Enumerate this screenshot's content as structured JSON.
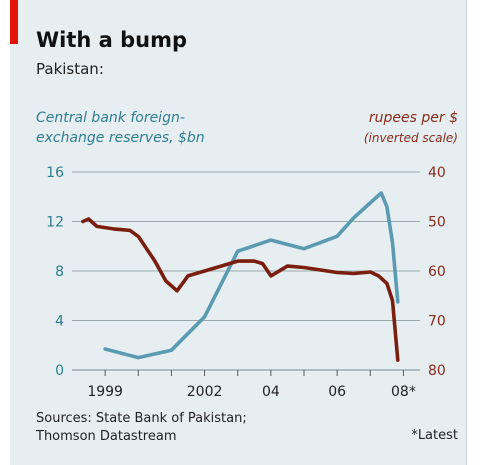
{
  "title": "With a bump",
  "subtitle": "Pakistan:",
  "left_axis_label": "Central bank foreign-exchange reserves, $bn",
  "left_axis_label_lines": [
    "Central bank foreign-",
    "exchange reserves, $bn"
  ],
  "right_axis_label": "rupees per $",
  "right_axis_sublabel": "(inverted scale)",
  "source_lines": [
    "Sources: State Bank of Pakistan;",
    "Thomson Datastream"
  ],
  "footnote": "*Latest",
  "colors": {
    "reserves": "#5a9bb2",
    "rupees": "#7a1f0f",
    "grid": "#9aa8ae",
    "accent": "#e3120b"
  },
  "chart_data": {
    "type": "line",
    "x_ticks": [
      "1999",
      "2002",
      "04",
      "06",
      "08*"
    ],
    "left_axis": {
      "ticks": [
        0,
        4,
        8,
        12,
        16
      ],
      "ylim": [
        0,
        16
      ],
      "unit": "$bn"
    },
    "right_axis": {
      "ticks": [
        40,
        50,
        60,
        70,
        80
      ],
      "ylim": [
        80,
        40
      ],
      "inverted": true,
      "unit": "rupees per $"
    },
    "grid": "horizontal",
    "series": [
      {
        "axis": "left",
        "x": [
          1999.0,
          2000.0,
          2001.0,
          2002.0,
          2003.0,
          2004.0,
          2005.0,
          2006.0,
          2006.5,
          2007.0,
          2007.33,
          2007.5,
          2007.67,
          2007.83
        ],
        "values": [
          1.7,
          1.0,
          1.6,
          4.3,
          9.6,
          10.5,
          9.8,
          10.8,
          12.3,
          13.5,
          14.3,
          13.2,
          10.3,
          5.5
        ]
      },
      {
        "axis": "right",
        "x": [
          1998.33,
          1998.5,
          1998.75,
          1999.25,
          1999.75,
          2000.0,
          2000.5,
          2000.83,
          2001.17,
          2001.5,
          2002.0,
          2002.5,
          2003.0,
          2003.5,
          2003.75,
          2004.0,
          2004.5,
          2005.0,
          2005.5,
          2006.0,
          2006.5,
          2007.0,
          2007.25,
          2007.5,
          2007.67,
          2007.83
        ],
        "values": [
          50.0,
          49.5,
          51.0,
          51.5,
          51.8,
          53.0,
          58.0,
          62.0,
          64.0,
          61.0,
          60.0,
          59.0,
          58.0,
          58.0,
          58.5,
          61.0,
          59.0,
          59.3,
          59.8,
          60.3,
          60.5,
          60.2,
          61.0,
          62.5,
          66.0,
          78.0
        ]
      }
    ]
  }
}
